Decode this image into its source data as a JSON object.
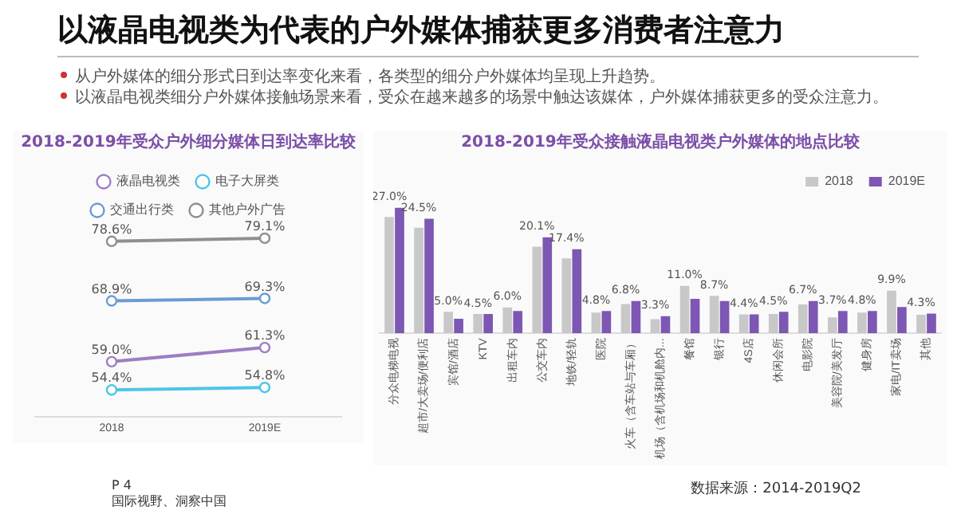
{
  "chart_data": [
    {
      "type": "other",
      "title": "以液晶电视类为代表的户外媒体捕获更多消费者注意力",
      "annotations": [
        "从户外媒体的细分形式日到达率变化来看，各类型的细分户外媒体均呈现上升趋势。",
        "以液晶电视类细分户外媒体接触场景来看，受众在越来越多的场景中触达该媒体，户外媒体捕获更多的受众注意力。",
        "P 4",
        "国际视野、洞察中国"
      ]
    },
    {
      "type": "line",
      "title": "2018-2019年受众户外细分媒体日到达率比较",
      "categories": [
        "2018",
        "2019E"
      ],
      "legend": "top",
      "marker": "circle",
      "series": [
        {
          "name": "液晶电视类",
          "color": "#9c7ec4",
          "values": [
            59.0,
            61.3
          ],
          "value_labels": [
            "59.0%",
            "61.3%"
          ]
        },
        {
          "name": "电子大屏类",
          "color": "#4cc6e8",
          "values": [
            54.4,
            54.8
          ],
          "value_labels": [
            "54.4%",
            "54.8%"
          ]
        },
        {
          "name": "交通出行类",
          "color": "#6b9bd6",
          "values": [
            68.9,
            69.3
          ],
          "value_labels": [
            "68.9%",
            "69.3%"
          ]
        },
        {
          "name": "其他户外广告",
          "color": "#8f8f8f",
          "values": [
            78.6,
            79.1
          ],
          "value_labels": [
            "78.6%",
            "79.1%"
          ]
        }
      ]
    },
    {
      "type": "bar",
      "title": "2018-2019年受众接触液晶电视类户外媒体的地点比较",
      "legend": "top right",
      "categories": [
        "分众电梯电视",
        "超市/大卖场/便利店",
        "宾馆/酒店",
        "KTV",
        "出租车内",
        "公交车内",
        "地铁/轻轨",
        "医院",
        "火车（含车站与车厢）",
        "机场（含机场和机舱内...",
        "餐馆",
        "银行",
        "4S店",
        "休闲会所",
        "电影院",
        "美容院/美发厅",
        "健身房",
        "家电/IT卖场",
        "其他"
      ],
      "series": [
        {
          "name": "2018",
          "color": "#c8c8c8",
          "values": [
            27.0,
            24.5,
            5.0,
            4.5,
            6.0,
            20.1,
            17.4,
            4.8,
            6.8,
            3.3,
            11.0,
            8.7,
            4.4,
            4.5,
            6.7,
            3.7,
            4.8,
            9.9,
            4.3
          ],
          "value_labels": [
            "27.0%",
            "24.5%",
            "5.0%",
            "4.5%",
            "6.0%",
            "20.1%",
            "17.4%",
            "4.8%",
            "6.8%",
            "3.3%",
            "11.0%",
            "8.7%",
            "4.4%",
            "4.5%",
            "6.7%",
            "3.7%",
            "4.8%",
            "9.9%",
            "4.3%"
          ]
        },
        {
          "name": "2019E",
          "color": "#7d57b3",
          "values": [
            29.1,
            26.6,
            3.4,
            4.5,
            5.2,
            22.3,
            19.5,
            5.2,
            7.5,
            4.0,
            8.0,
            7.5,
            4.4,
            5.0,
            7.5,
            5.2,
            5.2,
            6.1,
            4.6
          ]
        }
      ],
      "annotations": [
        "数据来源：2014-2019Q2"
      ]
    }
  ]
}
